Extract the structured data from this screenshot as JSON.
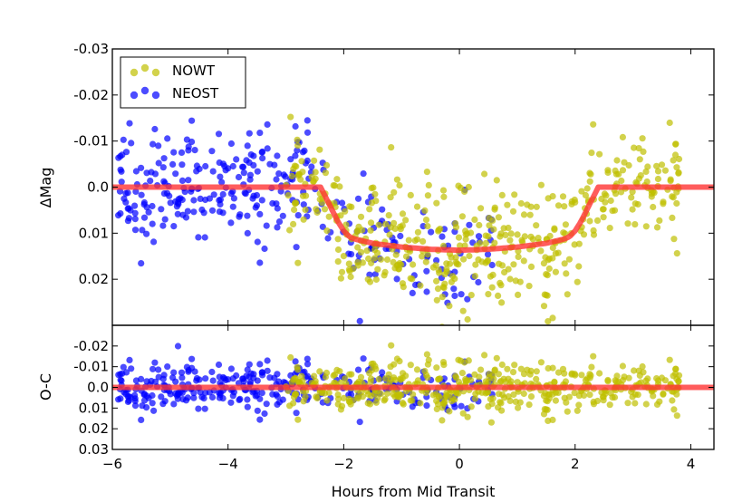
{
  "chart_data": [
    {
      "type": "scatter",
      "panel": "top",
      "title": "",
      "xlabel": "",
      "ylabel": "ΔMag",
      "xlim": [
        -6,
        4.4
      ],
      "ylim": [
        0.03,
        -0.03
      ],
      "y_inverted": true,
      "yticks": [
        -0.03,
        -0.02,
        -0.01,
        0.0,
        0.01,
        0.02
      ],
      "ytick_labels": [
        "-0.03",
        "-0.02",
        "-0.01",
        "0.0",
        "0.01",
        "0.02"
      ],
      "legend": {
        "placement": "top-left",
        "entries": [
          "NOWT",
          "NEOST"
        ]
      },
      "series": [
        {
          "name": "NOWT",
          "color": "#bfbf00",
          "x_range": [
            -3.0,
            3.8
          ],
          "description": "yellow scatter points"
        },
        {
          "name": "NEOST",
          "color": "#0000ff",
          "x_range": [
            -5.9,
            0.6
          ],
          "description": "blue scatter points"
        },
        {
          "name": "model",
          "type": "line",
          "color": "#ff3333",
          "x": [
            -6,
            -2.4,
            -2.3,
            -2.2,
            -2.1,
            -2.0,
            -1.9,
            -1.8,
            -1.5,
            -1.0,
            -0.5,
            0.0,
            0.5,
            1.0,
            1.5,
            1.8,
            1.9,
            2.0,
            2.1,
            2.2,
            2.3,
            2.4,
            4.4
          ],
          "y": [
            0.0,
            0.0,
            0.0025,
            0.005,
            0.0075,
            0.0095,
            0.0108,
            0.0113,
            0.0122,
            0.013,
            0.0135,
            0.0137,
            0.0135,
            0.013,
            0.0122,
            0.0113,
            0.0108,
            0.0095,
            0.0075,
            0.005,
            0.0025,
            0.0,
            0.0
          ]
        }
      ]
    },
    {
      "type": "scatter",
      "panel": "bottom",
      "xlabel": "Hours from Mid Transit",
      "ylabel": "O-C",
      "xlim": [
        -6,
        4.4
      ],
      "ylim": [
        0.03,
        -0.03
      ],
      "y_inverted": true,
      "xticks": [
        -6,
        -4,
        -2,
        0,
        2,
        4
      ],
      "xtick_labels": [
        "−6",
        "−4",
        "−2",
        "0",
        "2",
        "4"
      ],
      "yticks": [
        -0.02,
        -0.01,
        0.0,
        0.01,
        0.02,
        0.03
      ],
      "ytick_labels": [
        "-0.02",
        "-0.01",
        "0.0",
        "0.01",
        "0.02",
        "0.03"
      ],
      "series": [
        {
          "name": "NOWT",
          "color": "#bfbf00",
          "description": "yellow residual scatter"
        },
        {
          "name": "NEOST",
          "color": "#0000ff",
          "description": "blue residual scatter"
        },
        {
          "name": "zero",
          "type": "line",
          "color": "#ff3333",
          "x": [
            -6,
            4.4
          ],
          "y": [
            0.0,
            0.0
          ]
        }
      ]
    }
  ]
}
